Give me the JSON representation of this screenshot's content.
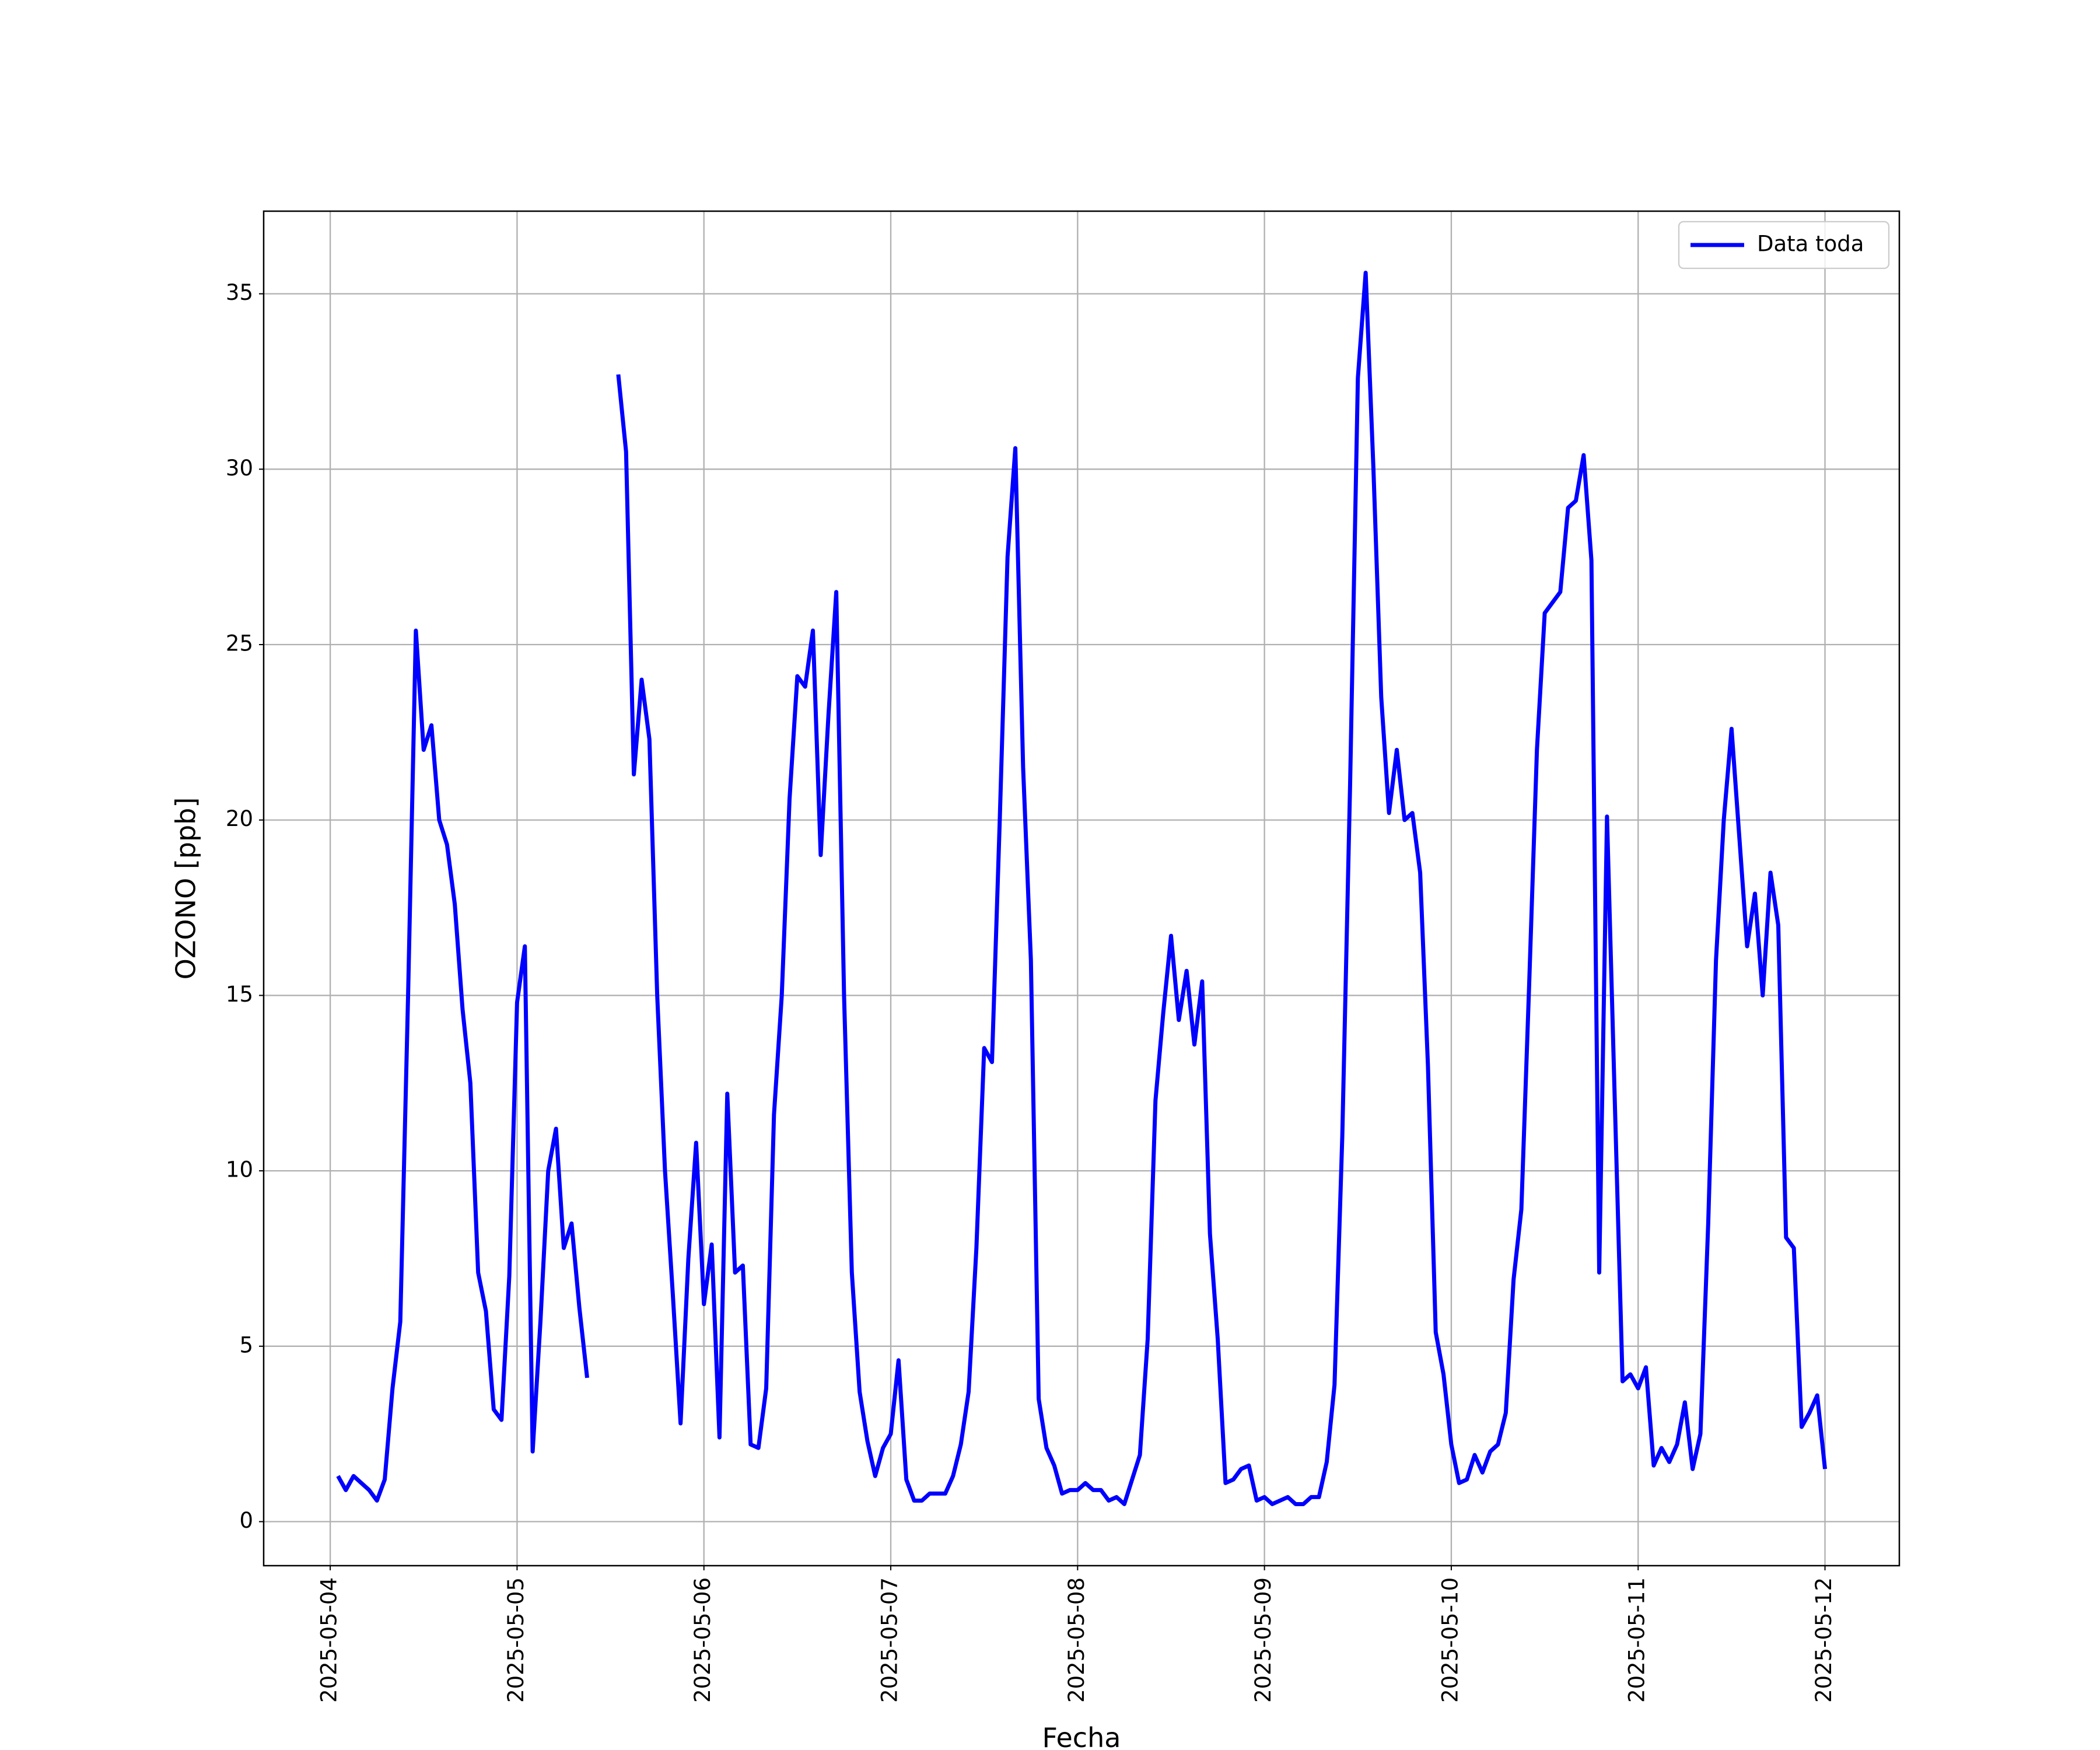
{
  "chart_data": {
    "type": "line",
    "xlabel": "Fecha",
    "ylabel": "OZONO [ppb]",
    "x": [
      "2025-05-04 01:00",
      "2025-05-04 02:00",
      "2025-05-04 03:00",
      "2025-05-04 04:00",
      "2025-05-04 05:00",
      "2025-05-04 06:00",
      "2025-05-04 07:00",
      "2025-05-04 08:00",
      "2025-05-04 09:00",
      "2025-05-04 10:00",
      "2025-05-04 11:00",
      "2025-05-04 12:00",
      "2025-05-04 13:00",
      "2025-05-04 14:00",
      "2025-05-04 15:00",
      "2025-05-04 16:00",
      "2025-05-04 17:00",
      "2025-05-04 18:00",
      "2025-05-04 19:00",
      "2025-05-04 20:00",
      "2025-05-04 21:00",
      "2025-05-04 22:00",
      "2025-05-04 23:00",
      "2025-05-05 00:00",
      "2025-05-05 01:00",
      "2025-05-05 02:00",
      "2025-05-05 03:00",
      "2025-05-05 04:00",
      "2025-05-05 05:00",
      "2025-05-05 06:00",
      "2025-05-05 07:00",
      "2025-05-05 08:00",
      "2025-05-05 09:00",
      "2025-05-05 10:00",
      "2025-05-05 11:00",
      "2025-05-05 12:00",
      "2025-05-05 13:00",
      "2025-05-05 14:00",
      "2025-05-05 15:00",
      "2025-05-05 16:00",
      "2025-05-05 17:00",
      "2025-05-05 18:00",
      "2025-05-05 19:00",
      "2025-05-05 20:00",
      "2025-05-05 21:00",
      "2025-05-05 22:00",
      "2025-05-05 23:00",
      "2025-05-06 00:00",
      "2025-05-06 01:00",
      "2025-05-06 02:00",
      "2025-05-06 03:00",
      "2025-05-06 04:00",
      "2025-05-06 05:00",
      "2025-05-06 06:00",
      "2025-05-06 07:00",
      "2025-05-06 08:00",
      "2025-05-06 09:00",
      "2025-05-06 10:00",
      "2025-05-06 11:00",
      "2025-05-06 12:00",
      "2025-05-06 13:00",
      "2025-05-06 14:00",
      "2025-05-06 15:00",
      "2025-05-06 16:00",
      "2025-05-06 17:00",
      "2025-05-06 18:00",
      "2025-05-06 19:00",
      "2025-05-06 20:00",
      "2025-05-06 21:00",
      "2025-05-06 22:00",
      "2025-05-06 23:00",
      "2025-05-07 00:00",
      "2025-05-07 01:00",
      "2025-05-07 02:00",
      "2025-05-07 03:00",
      "2025-05-07 04:00",
      "2025-05-07 05:00",
      "2025-05-07 06:00",
      "2025-05-07 07:00",
      "2025-05-07 08:00",
      "2025-05-07 09:00",
      "2025-05-07 10:00",
      "2025-05-07 11:00",
      "2025-05-07 12:00",
      "2025-05-07 13:00",
      "2025-05-07 14:00",
      "2025-05-07 15:00",
      "2025-05-07 16:00",
      "2025-05-07 17:00",
      "2025-05-07 18:00",
      "2025-05-07 19:00",
      "2025-05-07 20:00",
      "2025-05-07 21:00",
      "2025-05-07 22:00",
      "2025-05-07 23:00",
      "2025-05-08 00:00",
      "2025-05-08 01:00",
      "2025-05-08 02:00",
      "2025-05-08 03:00",
      "2025-05-08 04:00",
      "2025-05-08 05:00",
      "2025-05-08 06:00",
      "2025-05-08 07:00",
      "2025-05-08 08:00",
      "2025-05-08 09:00",
      "2025-05-08 10:00",
      "2025-05-08 11:00",
      "2025-05-08 12:00",
      "2025-05-08 13:00",
      "2025-05-08 14:00",
      "2025-05-08 15:00",
      "2025-05-08 16:00",
      "2025-05-08 17:00",
      "2025-05-08 18:00",
      "2025-05-08 19:00",
      "2025-05-08 20:00",
      "2025-05-08 21:00",
      "2025-05-08 22:00",
      "2025-05-08 23:00",
      "2025-05-09 00:00",
      "2025-05-09 01:00",
      "2025-05-09 02:00",
      "2025-05-09 03:00",
      "2025-05-09 04:00",
      "2025-05-09 05:00",
      "2025-05-09 06:00",
      "2025-05-09 07:00",
      "2025-05-09 08:00",
      "2025-05-09 09:00",
      "2025-05-09 10:00",
      "2025-05-09 11:00",
      "2025-05-09 12:00",
      "2025-05-09 13:00",
      "2025-05-09 14:00",
      "2025-05-09 15:00",
      "2025-05-09 16:00",
      "2025-05-09 17:00",
      "2025-05-09 18:00",
      "2025-05-09 19:00",
      "2025-05-09 20:00",
      "2025-05-09 21:00",
      "2025-05-09 22:00",
      "2025-05-09 23:00",
      "2025-05-10 00:00",
      "2025-05-10 01:00",
      "2025-05-10 02:00",
      "2025-05-10 03:00",
      "2025-05-10 04:00",
      "2025-05-10 05:00",
      "2025-05-10 06:00",
      "2025-05-10 07:00",
      "2025-05-10 08:00",
      "2025-05-10 09:00",
      "2025-05-10 10:00",
      "2025-05-10 11:00",
      "2025-05-10 12:00",
      "2025-05-10 13:00",
      "2025-05-10 14:00",
      "2025-05-10 15:00",
      "2025-05-10 16:00",
      "2025-05-10 17:00",
      "2025-05-10 18:00",
      "2025-05-10 19:00",
      "2025-05-10 20:00",
      "2025-05-10 21:00",
      "2025-05-10 22:00",
      "2025-05-10 23:00",
      "2025-05-11 00:00",
      "2025-05-11 01:00",
      "2025-05-11 02:00",
      "2025-05-11 03:00",
      "2025-05-11 04:00",
      "2025-05-11 05:00",
      "2025-05-11 06:00",
      "2025-05-11 07:00",
      "2025-05-11 08:00",
      "2025-05-11 09:00",
      "2025-05-11 10:00",
      "2025-05-11 11:00",
      "2025-05-11 12:00",
      "2025-05-11 13:00",
      "2025-05-11 14:00",
      "2025-05-11 15:00",
      "2025-05-11 16:00",
      "2025-05-11 17:00",
      "2025-05-11 18:00",
      "2025-05-11 19:00",
      "2025-05-11 20:00",
      "2025-05-11 21:00",
      "2025-05-11 22:00",
      "2025-05-11 23:00",
      "2025-05-12 00:00"
    ],
    "series": [
      {
        "name": "Data toda",
        "color": "#0000ff",
        "values": [
          1.3,
          0.9,
          1.3,
          1.1,
          0.9,
          0.6,
          1.2,
          3.8,
          5.7,
          15.0,
          25.4,
          22.0,
          22.7,
          20.0,
          19.3,
          17.6,
          14.6,
          12.5,
          7.1,
          6.0,
          3.2,
          2.9,
          7.0,
          14.8,
          16.4,
          2.0,
          5.7,
          10.0,
          11.2,
          7.8,
          8.5,
          6.1,
          4.1,
          null,
          null,
          null,
          32.7,
          30.5,
          21.3,
          24.0,
          22.3,
          15.0,
          10.0,
          6.5,
          2.8,
          7.5,
          10.8,
          6.2,
          7.9,
          2.4,
          12.2,
          7.1,
          7.3,
          2.2,
          2.1,
          3.8,
          11.6,
          15.0,
          20.6,
          24.1,
          23.8,
          25.4,
          19.0,
          23.0,
          26.5,
          15.0,
          7.1,
          3.7,
          2.3,
          1.3,
          2.1,
          2.5,
          4.6,
          1.2,
          0.6,
          0.6,
          0.8,
          0.8,
          0.8,
          1.3,
          2.2,
          3.7,
          7.8,
          13.5,
          13.1,
          20.0,
          27.5,
          30.6,
          21.5,
          16.0,
          3.5,
          2.1,
          1.6,
          0.8,
          0.9,
          0.9,
          1.1,
          0.9,
          0.9,
          0.6,
          0.7,
          0.5,
          1.2,
          1.9,
          5.2,
          12.0,
          14.5,
          16.7,
          14.3,
          15.7,
          13.6,
          15.4,
          8.2,
          5.2,
          1.1,
          1.2,
          1.5,
          1.6,
          0.6,
          0.7,
          0.5,
          0.6,
          0.7,
          0.5,
          0.5,
          0.7,
          0.7,
          1.7,
          3.9,
          11.0,
          21.0,
          32.6,
          35.6,
          30.0,
          23.5,
          20.2,
          22.0,
          20.0,
          20.2,
          18.5,
          13.0,
          5.4,
          4.2,
          2.2,
          1.1,
          1.2,
          1.9,
          1.4,
          2.0,
          2.2,
          3.1,
          6.9,
          8.9,
          15.3,
          22.0,
          25.9,
          26.2,
          26.5,
          28.9,
          29.1,
          30.4,
          27.4,
          7.1,
          20.1,
          12.0,
          4.0,
          4.2,
          3.8,
          4.4,
          1.6,
          2.1,
          1.7,
          2.2,
          3.4,
          1.5,
          2.5,
          8.5,
          16.0,
          20.0,
          22.6,
          19.5,
          16.4,
          17.9,
          15.0,
          18.5,
          17.0,
          8.1,
          7.8,
          2.7,
          3.1,
          3.6,
          1.5
        ]
      }
    ],
    "xlim": [
      "2025-05-03 15:27",
      "2025-05-12 09:33"
    ],
    "xticks": [
      "2025-05-04",
      "2025-05-05",
      "2025-05-06",
      "2025-05-07",
      "2025-05-08",
      "2025-05-09",
      "2025-05-10",
      "2025-05-11",
      "2025-05-12"
    ],
    "ylim": [
      -1.255,
      37.355
    ],
    "yticks": [
      0,
      5,
      10,
      15,
      20,
      25,
      30,
      35
    ],
    "grid": true,
    "legend": "upper right"
  }
}
